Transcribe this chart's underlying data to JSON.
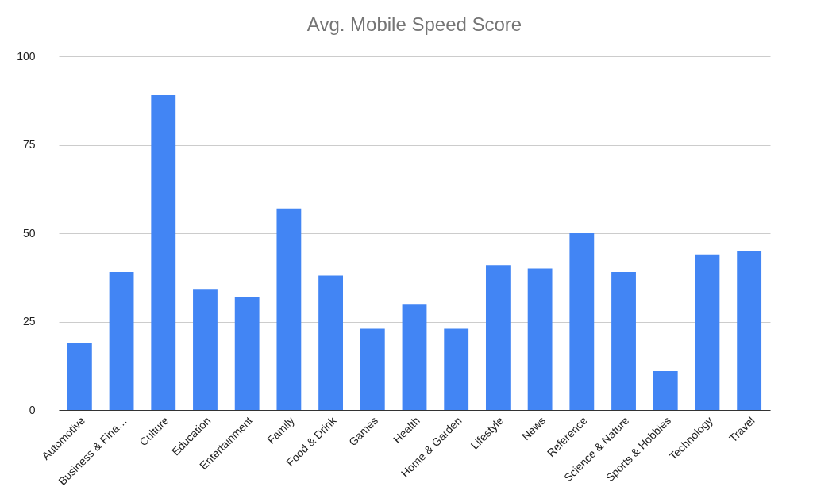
{
  "chart_data": {
    "type": "bar",
    "title": "Avg. Mobile Speed Score",
    "categories": [
      "Automotive",
      "Business & Fina…",
      "Culture",
      "Education",
      "Entertainment",
      "Family",
      "Food & Drink",
      "Games",
      "Health",
      "Home & Garden",
      "Lifestyle",
      "News",
      "Reference",
      "Science & Nature",
      "Sports & Hobbies",
      "Technology",
      "Travel"
    ],
    "values": [
      19,
      39,
      89,
      34,
      32,
      57,
      38,
      23,
      30,
      23,
      41,
      40,
      50,
      39,
      11,
      44,
      45
    ],
    "color": "#4285f4",
    "ylim": [
      0,
      100
    ],
    "yticks": [
      0,
      25,
      50,
      75,
      100
    ],
    "grid": "y"
  }
}
